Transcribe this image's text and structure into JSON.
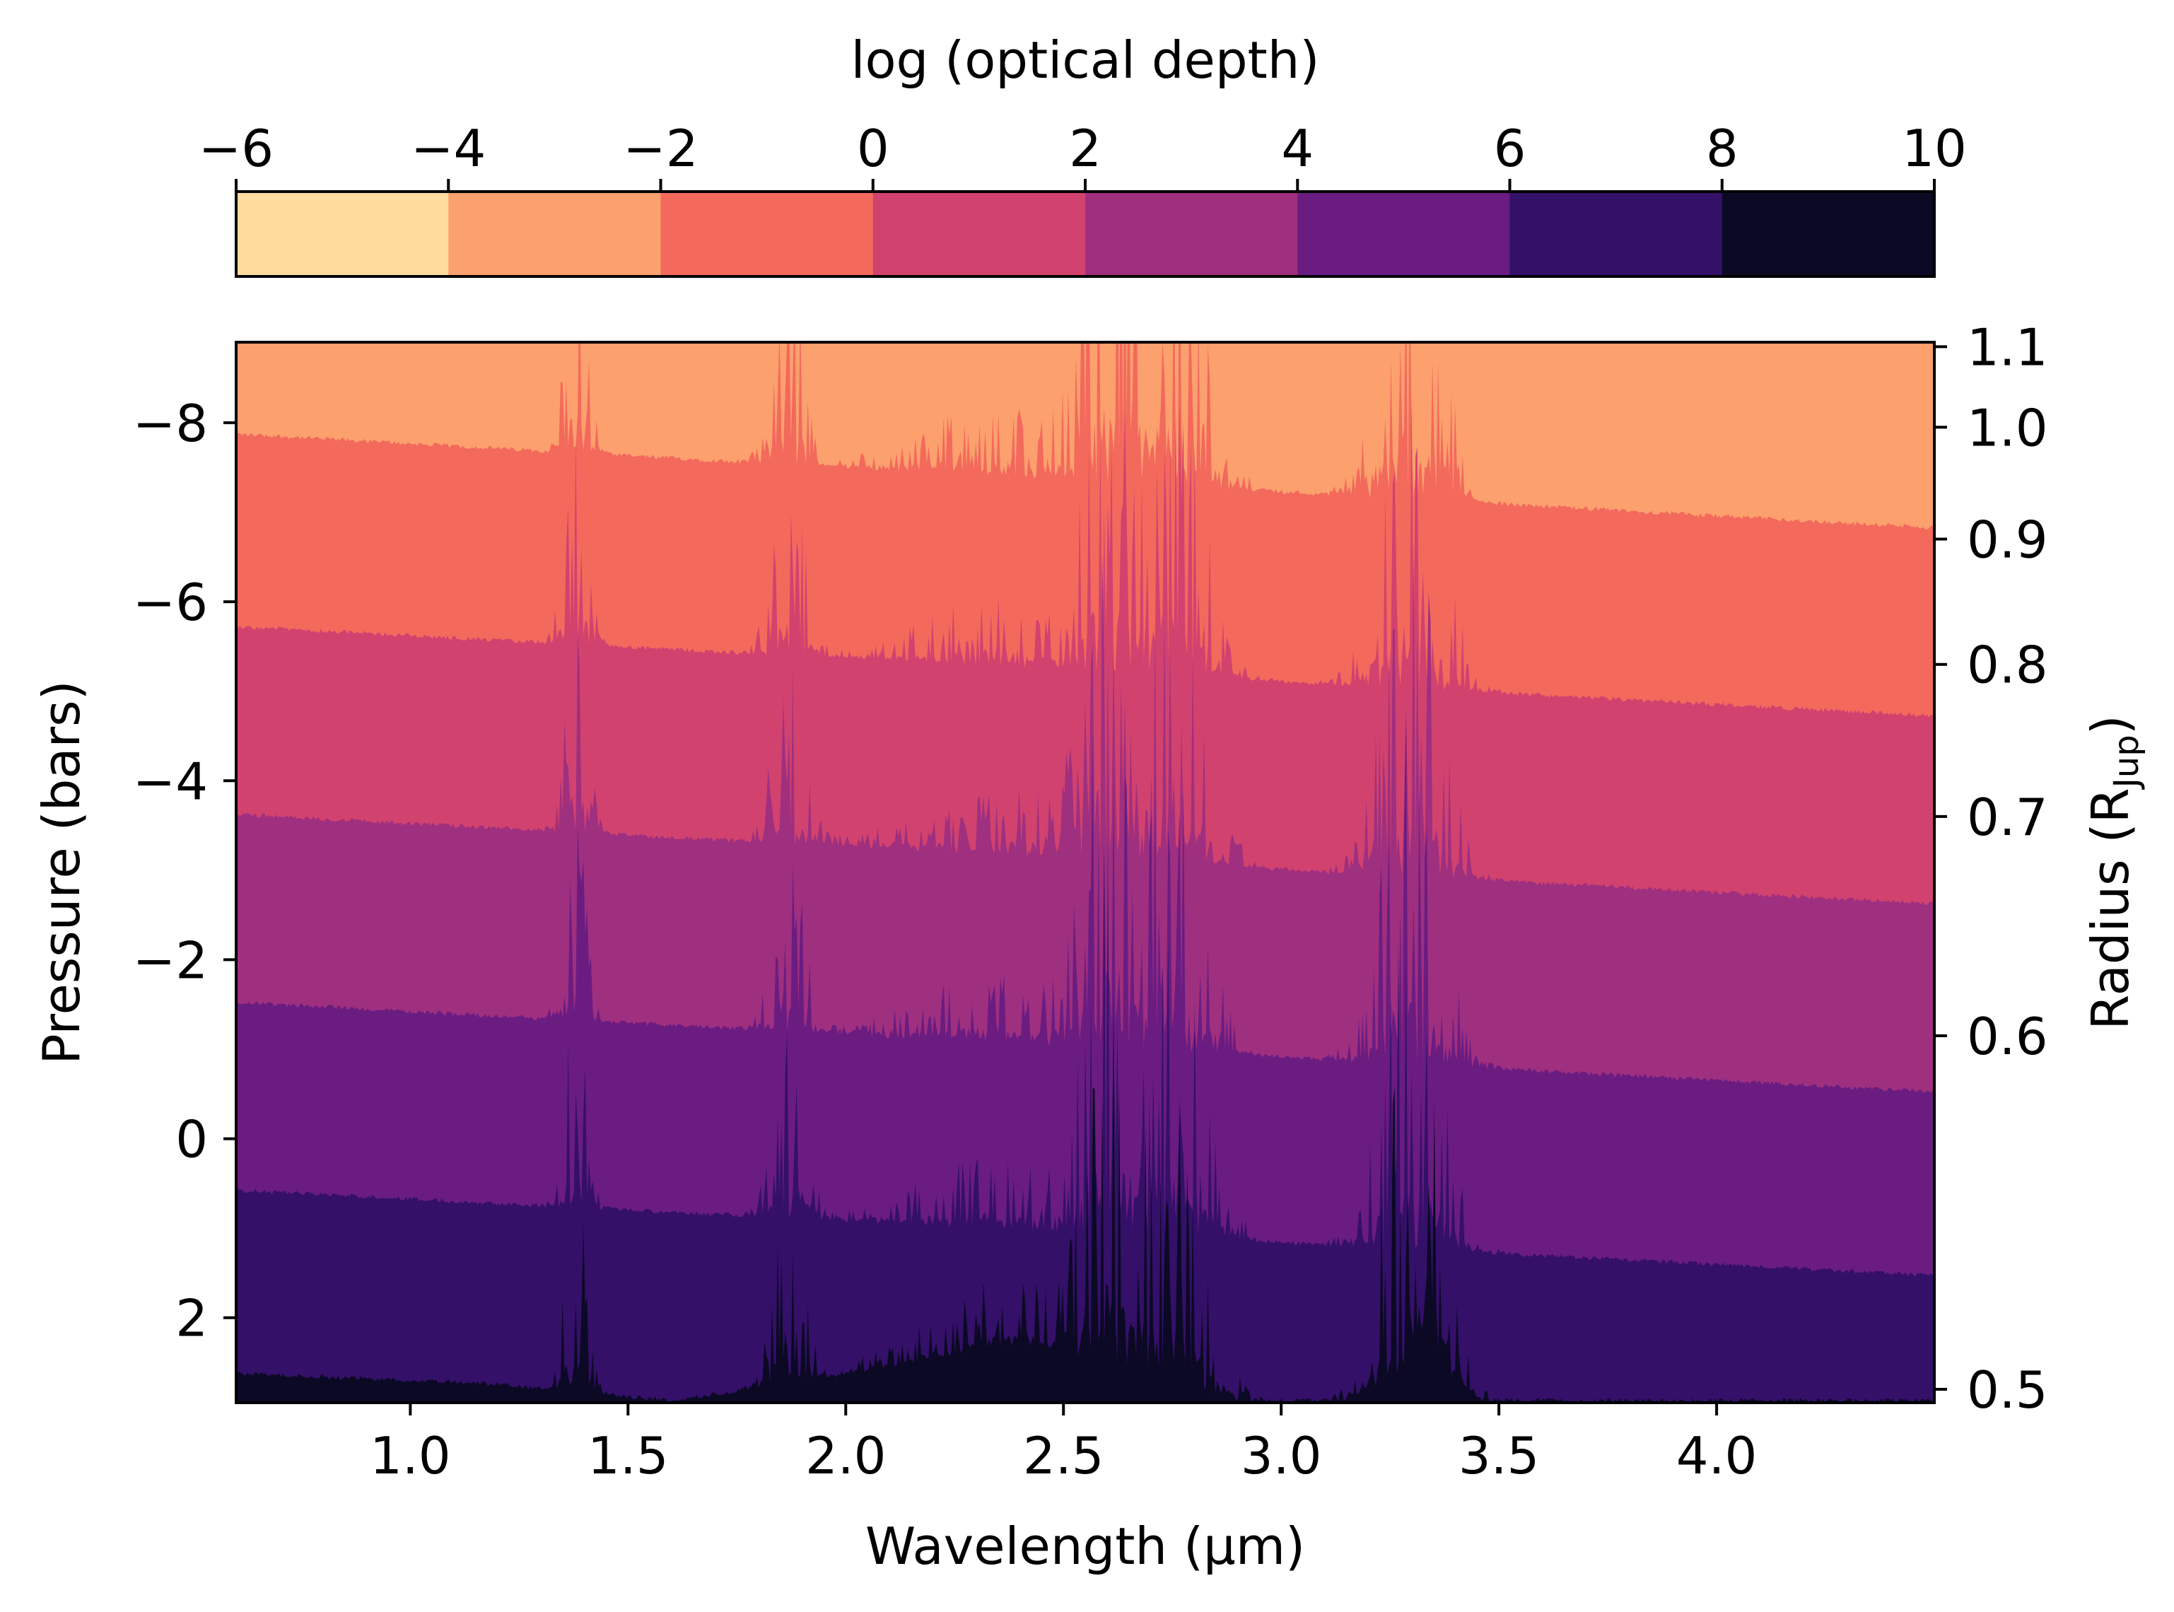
{
  "chart_data": {
    "type": "heatmap",
    "colorbar": {
      "label": "log (optical depth)",
      "ticks": [
        -6,
        -4,
        -2,
        0,
        2,
        4,
        6,
        8,
        10
      ],
      "tick_labels": [
        "−6",
        "−4",
        "−2",
        "0",
        "2",
        "4",
        "6",
        "8",
        "10"
      ],
      "levels": [
        {
          "range": [
            -6,
            -4
          ],
          "color": "#fddc9e"
        },
        {
          "range": [
            -4,
            -2
          ],
          "color": "#fca06e"
        },
        {
          "range": [
            -2,
            0
          ],
          "color": "#f3695c"
        },
        {
          "range": [
            0,
            2
          ],
          "color": "#d1426f"
        },
        {
          "range": [
            2,
            4
          ],
          "color": "#9f2f7f"
        },
        {
          "range": [
            4,
            6
          ],
          "color": "#6a1c81"
        },
        {
          "range": [
            6,
            8
          ],
          "color": "#341069"
        },
        {
          "range": [
            8,
            10
          ],
          "color": "#0b0924"
        }
      ]
    },
    "x": {
      "label": "Wavelength (μm)",
      "range": [
        0.6,
        4.5
      ],
      "ticks": [
        1.0,
        1.5,
        2.0,
        2.5,
        3.0,
        3.5,
        4.0
      ],
      "tick_labels": [
        "1.0",
        "1.5",
        "2.0",
        "2.5",
        "3.0",
        "3.5",
        "4.0"
      ]
    },
    "y_left": {
      "label": "Pressure (bars)",
      "range": [
        -8.9,
        2.95
      ],
      "inverted": true,
      "ticks": [
        -8,
        -6,
        -4,
        -2,
        0,
        2
      ],
      "tick_labels": [
        "−8",
        "−6",
        "−4",
        "−2",
        "0",
        "2"
      ]
    },
    "y_right": {
      "label_main": "Radius (R",
      "label_sub": "Jup",
      "label_end": ")",
      "ticks": [
        1.1,
        1.0,
        0.9,
        0.8,
        0.7,
        0.6,
        0.5
      ],
      "tick_labels": [
        "1.1",
        "1.0",
        "0.9",
        "0.8",
        "0.7",
        "0.6",
        "0.5"
      ],
      "tick_pressures": [
        -8.85,
        -7.95,
        -6.7,
        -5.3,
        -3.6,
        -1.15,
        2.8
      ]
    },
    "contour_boundaries": [
      {
        "tau": -4,
        "baseline": [
          [
            0.6,
            -7.85
          ],
          [
            4.5,
            -6.8
          ]
        ]
      },
      {
        "tau": -2,
        "baseline": [
          [
            0.6,
            -5.7
          ],
          [
            4.5,
            -4.7
          ]
        ]
      },
      {
        "tau": 0,
        "baseline": [
          [
            0.6,
            -3.6
          ],
          [
            4.5,
            -2.6
          ]
        ]
      },
      {
        "tau": 2,
        "baseline": [
          [
            0.6,
            -1.5
          ],
          [
            4.5,
            -0.5
          ]
        ]
      },
      {
        "tau": 4,
        "baseline": [
          [
            0.6,
            0.6
          ],
          [
            4.5,
            1.55
          ]
        ]
      },
      {
        "tau": 6,
        "baseline": [
          [
            0.6,
            2.65
          ],
          [
            1.15,
            2.75
          ],
          [
            1.6,
            2.95
          ],
          [
            1.95,
            2.7
          ],
          [
            2.4,
            2.35
          ],
          [
            2.55,
            2.45
          ],
          [
            2.9,
            2.95
          ],
          [
            3.15,
            2.95
          ],
          [
            3.35,
            2.5
          ],
          [
            3.45,
            2.95
          ],
          [
            4.5,
            2.95
          ]
        ]
      }
    ],
    "absorption_bands_um": [
      1.38,
      1.87,
      2.35,
      2.6,
      2.75,
      3.3
    ],
    "grid": false
  }
}
